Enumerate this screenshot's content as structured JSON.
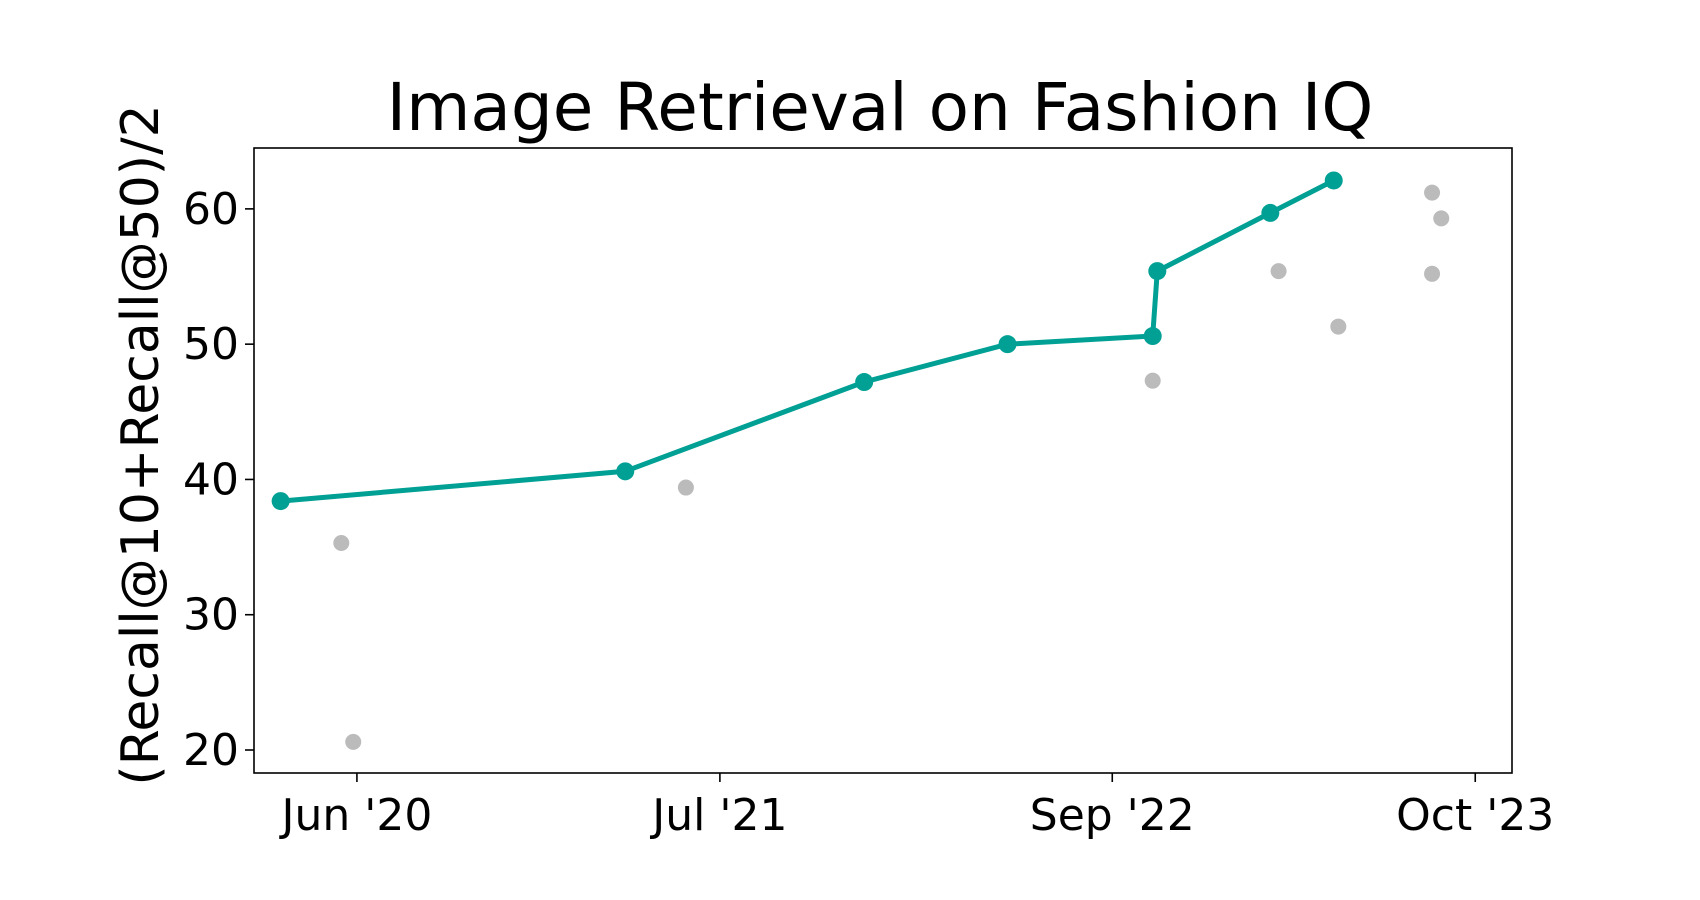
{
  "chart_data": {
    "type": "scatter",
    "title": "Image Retrieval on Fashion IQ",
    "xlabel": "",
    "ylabel": "(Recall@10+Recall@50)/2",
    "x_axis": {
      "kind": "date",
      "range": [
        "2020-02-10",
        "2023-11-10"
      ],
      "ticks": [
        {
          "date": "2020-06-01",
          "label": "Jun '20"
        },
        {
          "date": "2021-07-01",
          "label": "Jul '21"
        },
        {
          "date": "2022-09-01",
          "label": "Sep '22"
        },
        {
          "date": "2023-10-01",
          "label": "Oct '23"
        }
      ]
    },
    "y_axis": {
      "range": [
        18.3,
        64.5
      ],
      "ticks": [
        20,
        30,
        40,
        50,
        60
      ]
    },
    "grid": false,
    "legend": "none",
    "series": [
      {
        "role": "state-of-the-art",
        "color": "#00a094",
        "style": "line+markers",
        "points": [
          {
            "x": "2020-03-10",
            "y": 38.4
          },
          {
            "x": "2021-03-20",
            "y": 40.6
          },
          {
            "x": "2021-12-05",
            "y": 47.2
          },
          {
            "x": "2022-05-10",
            "y": 50.0
          },
          {
            "x": "2022-10-15",
            "y": 50.6
          },
          {
            "x": "2022-10-20",
            "y": 55.4
          },
          {
            "x": "2023-02-20",
            "y": 59.7
          },
          {
            "x": "2023-04-30",
            "y": 62.1
          }
        ]
      },
      {
        "role": "other-results",
        "color": "#bbbbbb",
        "style": "markers",
        "points": [
          {
            "x": "2020-05-15",
            "y": 35.3
          },
          {
            "x": "2020-05-28",
            "y": 20.6
          },
          {
            "x": "2021-05-25",
            "y": 39.4
          },
          {
            "x": "2022-10-15",
            "y": 47.3
          },
          {
            "x": "2023-03-01",
            "y": 55.4
          },
          {
            "x": "2023-05-05",
            "y": 51.3
          },
          {
            "x": "2023-08-15",
            "y": 55.2
          },
          {
            "x": "2023-08-15",
            "y": 61.2
          },
          {
            "x": "2023-08-25",
            "y": 59.3
          }
        ]
      }
    ]
  }
}
